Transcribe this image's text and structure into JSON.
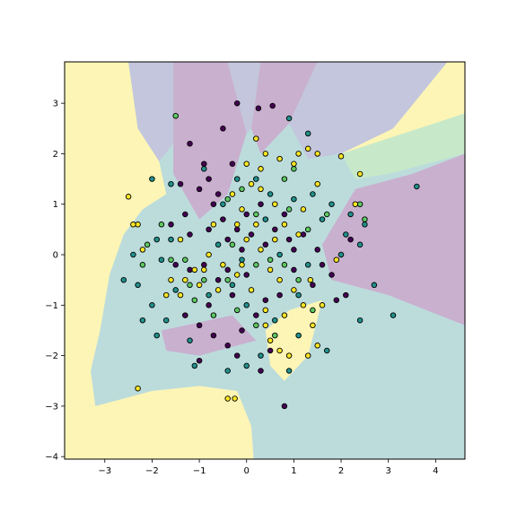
{
  "chart_data": {
    "type": "scatter",
    "title": "",
    "xlabel": "",
    "ylabel": "",
    "xlim": [
      -3.85,
      4.62
    ],
    "ylim": [
      -4.05,
      3.82
    ],
    "x_ticks": [
      -3,
      -2,
      -1,
      0,
      1,
      2,
      3,
      4
    ],
    "y_ticks": [
      -4,
      -3,
      -2,
      -1,
      0,
      1,
      2,
      3
    ],
    "grid": false,
    "legend": "none",
    "colors": {
      "class_0": "#440154",
      "class_1": "#21918c",
      "class_2": "#5ec962",
      "class_3": "#fde725",
      "bg_class_0": "#c9b0cf",
      "bg_class_1": "#bcdcdc",
      "bg_class_2": "#c7e9c9",
      "bg_class_3": "#fdf5b6",
      "bg_class_4": "#c3c6dc",
      "marker_edge": "#000000"
    },
    "decision_regions": [
      {
        "class": 3,
        "polygon": [
          [
            -3.85,
            3.82
          ],
          [
            -2.5,
            3.82
          ],
          [
            -2.3,
            2.5
          ],
          [
            -1.85,
            1.85
          ],
          [
            -1.7,
            1.2
          ],
          [
            -2.2,
            0.9
          ],
          [
            -2.6,
            0.4
          ],
          [
            -2.9,
            -0.4
          ],
          [
            -3.1,
            -1.5
          ],
          [
            -3.3,
            -2.3
          ],
          [
            -3.2,
            -3.0
          ],
          [
            -3.85,
            -3.0
          ]
        ]
      },
      {
        "class": 4,
        "polygon": [
          [
            -2.5,
            3.82
          ],
          [
            -1.55,
            3.82
          ],
          [
            -1.55,
            2.2
          ],
          [
            -1.85,
            1.85
          ],
          [
            -2.3,
            2.5
          ]
        ]
      },
      {
        "class": 0,
        "polygon": [
          [
            -1.55,
            3.82
          ],
          [
            -0.4,
            3.82
          ],
          [
            0.0,
            2.4
          ],
          [
            -0.4,
            1.2
          ],
          [
            -1.0,
            0.7
          ],
          [
            -1.55,
            1.6
          ]
        ]
      },
      {
        "class": 4,
        "polygon": [
          [
            -0.4,
            3.82
          ],
          [
            0.3,
            3.82
          ],
          [
            0.1,
            2.5
          ],
          [
            0.0,
            2.4
          ]
        ]
      },
      {
        "class": 0,
        "polygon": [
          [
            0.3,
            3.82
          ],
          [
            1.5,
            3.82
          ],
          [
            0.9,
            2.6
          ],
          [
            0.3,
            2.0
          ],
          [
            0.1,
            2.5
          ]
        ]
      },
      {
        "class": 4,
        "polygon": [
          [
            1.5,
            3.82
          ],
          [
            4.62,
            3.82
          ],
          [
            4.62,
            2.8
          ],
          [
            2.9,
            2.2
          ],
          [
            2.0,
            2.0
          ],
          [
            1.3,
            1.9
          ],
          [
            0.9,
            2.6
          ]
        ]
      },
      {
        "class": 3,
        "polygon": [
          [
            2.0,
            2.0
          ],
          [
            2.9,
            2.2
          ],
          [
            4.62,
            2.8
          ],
          [
            4.62,
            3.82
          ],
          [
            4.25,
            3.82
          ],
          [
            3.1,
            2.5
          ]
        ]
      },
      {
        "class": 2,
        "polygon": [
          [
            2.0,
            2.0
          ],
          [
            4.62,
            2.8
          ],
          [
            4.62,
            2.0
          ],
          [
            3.0,
            1.6
          ],
          [
            2.3,
            1.5
          ]
        ]
      },
      {
        "class": 0,
        "polygon": [
          [
            2.3,
            1.3
          ],
          [
            3.5,
            1.6
          ],
          [
            4.62,
            2.0
          ],
          [
            4.62,
            -1.4
          ],
          [
            3.0,
            -0.8
          ],
          [
            1.8,
            -0.5
          ],
          [
            1.6,
            0.2
          ]
        ]
      },
      {
        "class": 0,
        "polygon": [
          [
            -1.8,
            -1.5
          ],
          [
            -0.3,
            -1.2
          ],
          [
            0.2,
            -1.7
          ],
          [
            -1.0,
            -2.0
          ],
          [
            -1.7,
            -1.9
          ]
        ]
      },
      {
        "class": 3,
        "polygon": [
          [
            -3.2,
            -3.0
          ],
          [
            -2.0,
            -2.7
          ],
          [
            -1.0,
            -2.6
          ],
          [
            -0.2,
            -2.7
          ],
          [
            0.1,
            -3.4
          ],
          [
            0.15,
            -4.05
          ],
          [
            -3.85,
            -4.05
          ],
          [
            -3.85,
            -3.0
          ]
        ]
      },
      {
        "class": 3,
        "polygon": [
          [
            0.4,
            -1.5
          ],
          [
            0.9,
            -1.1
          ],
          [
            1.6,
            -0.9
          ],
          [
            1.3,
            -2.0
          ],
          [
            0.8,
            -2.5
          ],
          [
            0.5,
            -2.2
          ]
        ]
      }
    ],
    "series": [
      {
        "class": 0,
        "color": "#440154",
        "points": [
          [
            -0.2,
            3.0
          ],
          [
            0.25,
            2.9
          ],
          [
            0.55,
            2.95
          ],
          [
            -1.2,
            2.2
          ],
          [
            -0.5,
            2.5
          ],
          [
            -0.3,
            1.8
          ],
          [
            -0.9,
            1.8
          ],
          [
            -0.8,
            1.5
          ],
          [
            -0.6,
            1.2
          ],
          [
            -1.0,
            1.3
          ],
          [
            -0.7,
            1.0
          ],
          [
            -1.3,
            0.8
          ],
          [
            -1.6,
            0.6
          ],
          [
            -1.2,
            0.4
          ],
          [
            -0.8,
            0.5
          ],
          [
            -0.4,
            0.3
          ],
          [
            -0.1,
            0.1
          ],
          [
            0.1,
            0.4
          ],
          [
            0.4,
            0.2
          ],
          [
            0.6,
            0.5
          ],
          [
            0.9,
            0.3
          ],
          [
            1.2,
            0.4
          ],
          [
            1.5,
            0.1
          ],
          [
            1.6,
            -0.2
          ],
          [
            1.8,
            -0.4
          ],
          [
            2.1,
            -0.8
          ],
          [
            1.4,
            -0.6
          ],
          [
            1.0,
            -0.3
          ],
          [
            0.7,
            -0.8
          ],
          [
            0.4,
            -0.9
          ],
          [
            0.2,
            -1.2
          ],
          [
            -0.1,
            -1.5
          ],
          [
            -0.4,
            -1.8
          ],
          [
            -0.7,
            -1.6
          ],
          [
            -1.0,
            -1.4
          ],
          [
            -1.3,
            -1.2
          ],
          [
            -0.3,
            -0.8
          ],
          [
            -0.6,
            -0.5
          ],
          [
            -0.9,
            -0.2
          ],
          [
            -0.2,
            -2.0
          ],
          [
            0.3,
            -2.3
          ],
          [
            0.5,
            -1.9
          ],
          [
            -1.2,
            -0.3
          ],
          [
            -0.5,
            0.7
          ],
          [
            0.0,
            0.8
          ],
          [
            0.3,
            1.0
          ],
          [
            0.8,
            0.8
          ],
          [
            -1.5,
            -0.2
          ],
          [
            -0.4,
            -0.3
          ],
          [
            0.0,
            -0.4
          ],
          [
            -1.4,
            1.4
          ],
          [
            -0.8,
            -1.0
          ],
          [
            1.9,
            -0.9
          ],
          [
            2.2,
            0.3
          ],
          [
            -1.0,
            -2.1
          ],
          [
            0.8,
            -3.0
          ],
          [
            1.0,
            0.1
          ],
          [
            -0.2,
            0.5
          ]
        ]
      },
      {
        "class": 1,
        "color": "#21918c",
        "points": [
          [
            0.9,
            2.7
          ],
          [
            1.3,
            2.4
          ],
          [
            -2.0,
            1.5
          ],
          [
            -1.6,
            1.4
          ],
          [
            -0.9,
            1.7
          ],
          [
            -0.2,
            1.5
          ],
          [
            0.5,
            1.2
          ],
          [
            1.0,
            1.1
          ],
          [
            1.4,
            1.2
          ],
          [
            1.8,
            1.0
          ],
          [
            2.2,
            0.8
          ],
          [
            2.5,
            0.6
          ],
          [
            2.4,
            0.2
          ],
          [
            2.0,
            0.0
          ],
          [
            3.6,
            1.35
          ],
          [
            2.7,
            -0.6
          ],
          [
            2.4,
            -1.3
          ],
          [
            3.1,
            -1.2
          ],
          [
            1.7,
            -1.9
          ],
          [
            0.9,
            -2.3
          ],
          [
            0.3,
            -2.0
          ],
          [
            -0.4,
            -2.3
          ],
          [
            -1.1,
            -2.2
          ],
          [
            -1.7,
            -1.3
          ],
          [
            -2.0,
            -1.0
          ],
          [
            -2.3,
            -0.6
          ],
          [
            -2.6,
            -0.5
          ],
          [
            -1.8,
            -0.1
          ],
          [
            -1.6,
            0.3
          ],
          [
            -1.9,
            0.3
          ],
          [
            -0.6,
            0.2
          ],
          [
            -0.3,
            -0.6
          ],
          [
            0.0,
            -1.0
          ],
          [
            0.6,
            -1.3
          ],
          [
            1.1,
            -0.8
          ],
          [
            1.3,
            -0.2
          ],
          [
            0.7,
            0.0
          ],
          [
            -1.5,
            -0.7
          ],
          [
            -0.8,
            -0.8
          ],
          [
            -2.2,
            -1.3
          ],
          [
            -2.4,
            0.0
          ],
          [
            0.4,
            0.7
          ],
          [
            -0.1,
            -0.1
          ],
          [
            1.6,
            0.7
          ],
          [
            -1.2,
            -1.7
          ],
          [
            0.0,
            -2.2
          ],
          [
            1.1,
            -1.6
          ],
          [
            -0.5,
            1.0
          ],
          [
            0.2,
            1.5
          ],
          [
            2.1,
            0.4
          ],
          [
            -1.9,
            -1.6
          ]
        ]
      },
      {
        "class": 2,
        "color": "#5ec962",
        "points": [
          [
            -1.5,
            2.75
          ],
          [
            1.0,
            1.7
          ],
          [
            -0.1,
            1.3
          ],
          [
            -0.4,
            1.1
          ],
          [
            0.2,
            0.8
          ],
          [
            0.8,
            1.5
          ],
          [
            1.3,
            0.5
          ],
          [
            1.7,
            0.8
          ],
          [
            2.4,
            1.0
          ],
          [
            2.5,
            0.7
          ],
          [
            -2.1,
            0.2
          ],
          [
            -1.6,
            -0.1
          ],
          [
            -1.3,
            -0.1
          ],
          [
            -1.2,
            -0.6
          ],
          [
            -0.9,
            -0.5
          ],
          [
            -0.4,
            -0.5
          ],
          [
            0.2,
            -0.2
          ],
          [
            0.5,
            -0.1
          ],
          [
            0.8,
            -0.2
          ],
          [
            1.1,
            -0.5
          ],
          [
            0.6,
            -1.6
          ],
          [
            0.2,
            -1.4
          ],
          [
            -0.2,
            -1.1
          ],
          [
            -0.7,
            -1.2
          ],
          [
            -1.1,
            -0.9
          ],
          [
            -0.3,
            0.2
          ],
          [
            0.9,
            0.9
          ],
          [
            1.4,
            -1.1
          ],
          [
            -1.8,
            0.6
          ],
          [
            -2.2,
            -0.2
          ]
        ]
      },
      {
        "class": 3,
        "color": "#fde725",
        "points": [
          [
            -2.5,
            1.15
          ],
          [
            -2.3,
            0.6
          ],
          [
            -2.2,
            0.1
          ],
          [
            -2.3,
            -2.65
          ],
          [
            -0.4,
            -2.85
          ],
          [
            -0.25,
            -2.85
          ],
          [
            0.2,
            2.3
          ],
          [
            0.4,
            2.0
          ],
          [
            0.7,
            1.9
          ],
          [
            1.0,
            1.8
          ],
          [
            1.1,
            2.0
          ],
          [
            1.3,
            2.1
          ],
          [
            1.5,
            2.0
          ],
          [
            2.0,
            1.95
          ],
          [
            2.4,
            1.6
          ],
          [
            0.3,
            1.7
          ],
          [
            0.1,
            1.4
          ],
          [
            -0.1,
            0.9
          ],
          [
            0.3,
            1.3
          ],
          [
            0.6,
            1.0
          ],
          [
            0.8,
            0.6
          ],
          [
            1.2,
            0.9
          ],
          [
            -0.2,
            0.6
          ],
          [
            0.0,
            0.3
          ],
          [
            0.3,
            0.1
          ],
          [
            0.5,
            -0.3
          ],
          [
            0.7,
            -0.5
          ],
          [
            1.0,
            -0.7
          ],
          [
            1.2,
            -1.0
          ],
          [
            1.4,
            -1.4
          ],
          [
            1.5,
            -1.8
          ],
          [
            1.3,
            -2.0
          ],
          [
            0.9,
            -2.0
          ],
          [
            0.7,
            -1.9
          ],
          [
            0.5,
            -1.7
          ],
          [
            0.4,
            -1.4
          ],
          [
            0.1,
            -0.7
          ],
          [
            -0.2,
            -0.4
          ],
          [
            -0.5,
            -0.2
          ],
          [
            -0.8,
            0.0
          ],
          [
            -1.1,
            -0.3
          ],
          [
            -1.3,
            -0.5
          ],
          [
            -1.6,
            -0.5
          ],
          [
            -1.7,
            -0.8
          ],
          [
            -1.4,
            -0.8
          ],
          [
            -0.9,
            -0.3
          ],
          [
            -0.6,
            -0.7
          ],
          [
            -0.1,
            -0.2
          ],
          [
            0.2,
            0.6
          ],
          [
            1.6,
            -1.0
          ],
          [
            0.4,
            -1.1
          ],
          [
            -1.0,
            -0.6
          ],
          [
            1.9,
            -0.1
          ],
          [
            2.3,
            1.0
          ],
          [
            1.1,
            0.4
          ],
          [
            1.35,
            -0.5
          ],
          [
            -1.4,
            0.3
          ],
          [
            -2.4,
            0.6
          ],
          [
            -0.7,
            0.6
          ],
          [
            0.0,
            1.8
          ],
          [
            1.5,
            1.4
          ],
          [
            0.8,
            -1.2
          ],
          [
            -0.3,
            1.2
          ],
          [
            0.6,
            0.3
          ]
        ]
      }
    ]
  }
}
